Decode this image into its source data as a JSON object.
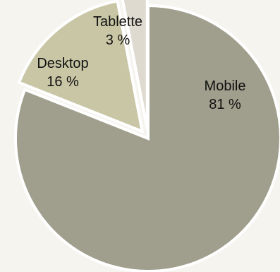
{
  "chart_data": {
    "type": "pie",
    "title": "",
    "slices": [
      {
        "label": "Mobile",
        "value": 81,
        "value_text": "81 %",
        "color": "#a09e8c",
        "exploded": false
      },
      {
        "label": "Desktop",
        "value": 16,
        "value_text": "16 %",
        "color": "#c9c6a6",
        "exploded": true
      },
      {
        "label": "Tablette",
        "value": 3,
        "value_text": "3 %",
        "color": "#dedad0",
        "exploded": true
      }
    ],
    "legend": "none",
    "start_angle": "12 o'clock",
    "direction": "clockwise"
  }
}
